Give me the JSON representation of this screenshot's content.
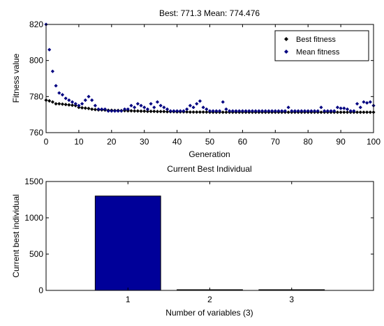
{
  "colors": {
    "best_marker": "#000000",
    "mean_marker": "#000080",
    "bar_fill": "#000099",
    "axes": "#000000"
  },
  "chart_data": [
    {
      "type": "scatter",
      "title": "Best: 771.3 Mean: 774.476",
      "xlabel": "Generation",
      "ylabel": "Fitness value",
      "xlim": [
        0,
        100
      ],
      "ylim": [
        760,
        820
      ],
      "xticks": [
        0,
        10,
        20,
        30,
        40,
        50,
        60,
        70,
        80,
        90,
        100
      ],
      "yticks": [
        760,
        780,
        800,
        820
      ],
      "grid": false,
      "legend_position": "top-right",
      "marker": "diamond",
      "series": [
        {
          "name": "Best fitness",
          "color": "#000000",
          "x": [
            0,
            1,
            2,
            3,
            4,
            5,
            6,
            7,
            8,
            9,
            10,
            11,
            12,
            13,
            14,
            15,
            16,
            17,
            18,
            19,
            20,
            21,
            22,
            23,
            24,
            25,
            26,
            27,
            28,
            29,
            30,
            31,
            32,
            33,
            34,
            35,
            36,
            37,
            38,
            39,
            40,
            41,
            42,
            43,
            44,
            45,
            46,
            47,
            48,
            49,
            50,
            51,
            52,
            53,
            54,
            55,
            56,
            57,
            58,
            59,
            60,
            61,
            62,
            63,
            64,
            65,
            66,
            67,
            68,
            69,
            70,
            71,
            72,
            73,
            74,
            75,
            76,
            77,
            78,
            79,
            80,
            81,
            82,
            83,
            84,
            85,
            86,
            87,
            88,
            89,
            90,
            91,
            92,
            93,
            94,
            95,
            96,
            97,
            98,
            99,
            100
          ],
          "y": [
            778,
            777.6,
            777,
            776,
            776,
            775.8,
            775.6,
            775.4,
            775.2,
            775,
            774,
            773.8,
            773.6,
            773.4,
            773,
            772.8,
            772.6,
            772.6,
            772.5,
            772.4,
            772.4,
            772.3,
            772.3,
            772.2,
            772.2,
            772.1,
            772.1,
            772,
            772,
            771.9,
            771.9,
            771.8,
            771.8,
            771.8,
            771.7,
            771.7,
            771.7,
            771.6,
            771.6,
            771.6,
            771.5,
            771.5,
            771.5,
            771.5,
            771.4,
            771.4,
            771.4,
            771.4,
            771.4,
            771.4,
            771.3,
            771.3,
            771.3,
            771.3,
            771.3,
            771.3,
            771.3,
            771.3,
            771.3,
            771.3,
            771.3,
            771.3,
            771.3,
            771.3,
            771.3,
            771.3,
            771.3,
            771.3,
            771.3,
            771.3,
            771.3,
            771.3,
            771.3,
            771.3,
            771.3,
            771.3,
            771.3,
            771.3,
            771.3,
            771.3,
            771.3,
            771.3,
            771.3,
            771.3,
            771.3,
            771.3,
            771.3,
            771.3,
            771.3,
            771.3,
            771.3,
            771.3,
            771.3,
            771.3,
            771.3,
            771.3,
            771.3,
            771.3,
            771.3,
            771.3,
            771.3
          ]
        },
        {
          "name": "Mean fitness",
          "color": "#000080",
          "x": [
            0,
            1,
            2,
            3,
            4,
            5,
            6,
            7,
            8,
            9,
            10,
            11,
            12,
            13,
            14,
            15,
            16,
            17,
            18,
            19,
            20,
            21,
            22,
            23,
            24,
            25,
            26,
            27,
            28,
            29,
            30,
            31,
            32,
            33,
            34,
            35,
            36,
            37,
            38,
            39,
            40,
            41,
            42,
            43,
            44,
            45,
            46,
            47,
            48,
            49,
            50,
            51,
            52,
            53,
            54,
            55,
            56,
            57,
            58,
            59,
            60,
            61,
            62,
            63,
            64,
            65,
            66,
            67,
            68,
            69,
            70,
            71,
            72,
            73,
            74,
            75,
            76,
            77,
            78,
            79,
            80,
            81,
            82,
            83,
            84,
            85,
            86,
            87,
            88,
            89,
            90,
            91,
            92,
            93,
            94,
            95,
            96,
            97,
            98,
            99,
            100
          ],
          "y": [
            820,
            806,
            794,
            786,
            782,
            781,
            779,
            778,
            777,
            776,
            775,
            776,
            778,
            780,
            778,
            775,
            773,
            773,
            773,
            772,
            772,
            772,
            772,
            772,
            773,
            773,
            775,
            774,
            776,
            775,
            774,
            773,
            776,
            774,
            777,
            775,
            774,
            773,
            772,
            772,
            772,
            772,
            772,
            773,
            775,
            774,
            776,
            777.5,
            774,
            773,
            772,
            772,
            772,
            772,
            777,
            773,
            772,
            772,
            772,
            772,
            772,
            772,
            772,
            772,
            772,
            772,
            772,
            772,
            772,
            772,
            772,
            772,
            772,
            772,
            774,
            772,
            772,
            772,
            772,
            772,
            772,
            772,
            772,
            772,
            774,
            772,
            772,
            772,
            772,
            774,
            773.5,
            773.5,
            773,
            772,
            772,
            776,
            774,
            777,
            776.5,
            777,
            775
          ]
        }
      ]
    },
    {
      "type": "bar",
      "title": "Current Best Individual",
      "xlabel": "Number of variables (3)",
      "ylabel": "Current best individual",
      "categories": [
        "1",
        "2",
        "3"
      ],
      "values": [
        1300,
        3,
        2
      ],
      "ylim": [
        0,
        1500
      ],
      "yticks": [
        0,
        500,
        1000,
        1500
      ],
      "grid": false
    }
  ]
}
